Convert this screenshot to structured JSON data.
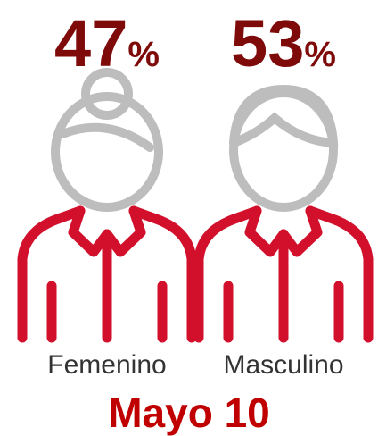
{
  "chart_data": {
    "type": "pictogram",
    "title": "Mayo 10",
    "categories": [
      "Femenino",
      "Masculino"
    ],
    "values": [
      47,
      53
    ],
    "value_labels": [
      "47%",
      "53%"
    ],
    "label_color": "#7f0a0a",
    "body_color": "#d2102c",
    "head_color": "#bdbdbd"
  }
}
